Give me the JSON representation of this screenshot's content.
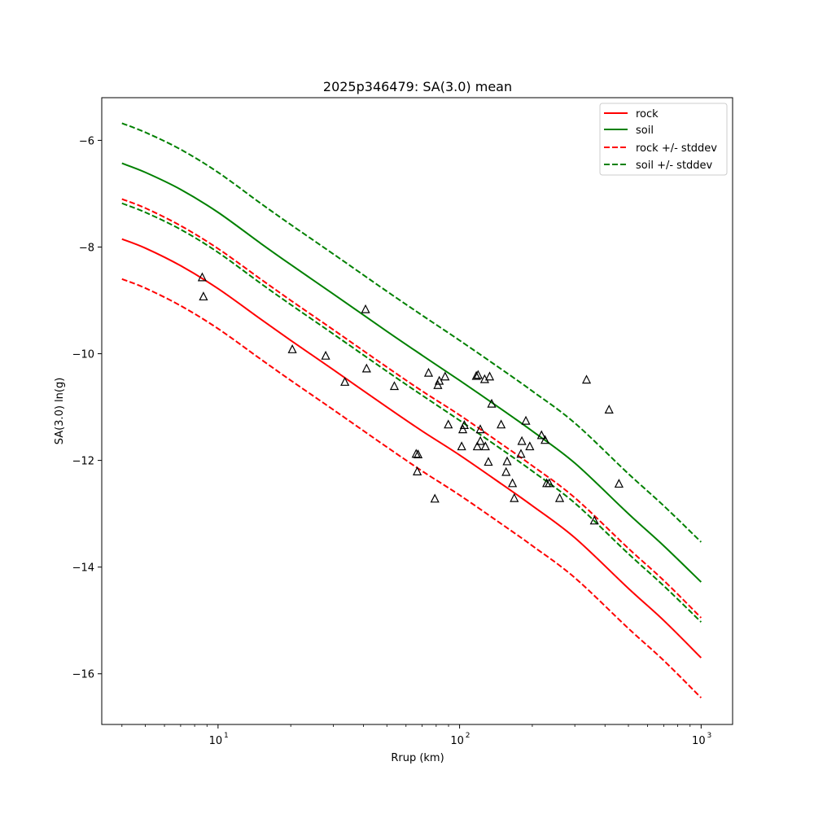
{
  "chart_data": {
    "type": "line",
    "title": "2025p346479: SA(3.0) mean",
    "xlabel": "Rrup (km)",
    "ylabel": "SA(3.0) ln(g)",
    "xscale": "log",
    "xlim": [
      3.3,
      1350
    ],
    "ylim": [
      -16.95,
      -5.2
    ],
    "x_ticks": [
      10,
      100,
      1000
    ],
    "x_tick_labels": [
      "10",
      "10",
      "10"
    ],
    "x_tick_exponents": [
      "1",
      "2",
      "3"
    ],
    "y_ticks": [
      -16,
      -14,
      -12,
      -10,
      -8,
      -6
    ],
    "y_tick_labels": [
      "−16",
      "−14",
      "−12",
      "−10",
      "−8",
      "−6"
    ],
    "grid": false,
    "legend_placement": "top-right",
    "colors": {
      "rock": "#ff0000",
      "soil": "#008000",
      "observed": "#000000"
    },
    "series": [
      {
        "name": "rock",
        "color": "#ff0000",
        "dash": "solid",
        "x": [
          4,
          5,
          7,
          10,
          15,
          20,
          30,
          50,
          70,
          100,
          150,
          200,
          300,
          500,
          700,
          1000
        ],
        "y": [
          -7.85,
          -8.02,
          -8.35,
          -8.78,
          -9.35,
          -9.75,
          -10.3,
          -11.0,
          -11.45,
          -11.9,
          -12.45,
          -12.85,
          -13.45,
          -14.4,
          -15.0,
          -15.7
        ]
      },
      {
        "name": "soil",
        "color": "#008000",
        "dash": "solid",
        "x": [
          4,
          5,
          7,
          10,
          15,
          20,
          30,
          50,
          70,
          100,
          150,
          200,
          300,
          500,
          700,
          1000
        ],
        "y": [
          -6.43,
          -6.6,
          -6.92,
          -7.35,
          -7.93,
          -8.33,
          -8.88,
          -9.58,
          -10.03,
          -10.5,
          -11.05,
          -11.45,
          -12.05,
          -13.0,
          -13.6,
          -14.28
        ]
      },
      {
        "name": "rock +/- stddev",
        "color": "#ff0000",
        "dash": "dashed",
        "x": [
          4,
          5,
          7,
          10,
          15,
          20,
          30,
          50,
          70,
          100,
          150,
          200,
          300,
          500,
          700,
          1000
        ],
        "y": [
          -7.1,
          -7.27,
          -7.6,
          -8.03,
          -8.6,
          -9.0,
          -9.55,
          -10.25,
          -10.7,
          -11.15,
          -11.7,
          -12.1,
          -12.7,
          -13.65,
          -14.25,
          -14.95
        ]
      },
      {
        "name": "",
        "color": "#ff0000",
        "dash": "dashed",
        "x": [
          4,
          5,
          7,
          10,
          15,
          20,
          30,
          50,
          70,
          100,
          150,
          200,
          300,
          500,
          700,
          1000
        ],
        "y": [
          -8.6,
          -8.77,
          -9.1,
          -9.53,
          -10.1,
          -10.5,
          -11.05,
          -11.75,
          -12.2,
          -12.65,
          -13.2,
          -13.6,
          -14.2,
          -15.15,
          -15.75,
          -16.45
        ]
      },
      {
        "name": "soil +/- stddev",
        "color": "#008000",
        "dash": "dashed",
        "x": [
          4,
          5,
          7,
          10,
          15,
          20,
          30,
          50,
          70,
          100,
          150,
          200,
          300,
          500,
          700,
          1000
        ],
        "y": [
          -5.68,
          -5.85,
          -6.17,
          -6.6,
          -7.18,
          -7.58,
          -8.13,
          -8.83,
          -9.28,
          -9.75,
          -10.3,
          -10.7,
          -11.3,
          -12.25,
          -12.85,
          -13.53
        ]
      },
      {
        "name": "",
        "color": "#008000",
        "dash": "dashed",
        "x": [
          4,
          5,
          7,
          10,
          15,
          20,
          30,
          50,
          70,
          100,
          150,
          200,
          300,
          500,
          700,
          1000
        ],
        "y": [
          -7.18,
          -7.35,
          -7.67,
          -8.1,
          -8.68,
          -9.08,
          -9.63,
          -10.33,
          -10.78,
          -11.25,
          -11.8,
          -12.2,
          -12.8,
          -13.75,
          -14.35,
          -15.03
        ]
      }
    ],
    "observations": {
      "marker": "triangle",
      "x": [
        8.6,
        8.7,
        20.3,
        27.9,
        33.5,
        40.8,
        41.2,
        53.7,
        66.1,
        66.8,
        67.3,
        74.4,
        79.0,
        81.3,
        82.4,
        87.1,
        89.8,
        102.0,
        103.1,
        104.6,
        117.3,
        118.4,
        119.3,
        121.8,
        121.9,
        127.0,
        127.9,
        131.6,
        133.2,
        135.8,
        148.6,
        155.8,
        157.3,
        165.6,
        168.4,
        179.5,
        181.1,
        188.1,
        195.3,
        218.4,
        225.9,
        229.5,
        235.0,
        259.6,
        335.4,
        361.5,
        415.8,
        456.9
      ],
      "y": [
        -8.57,
        -8.93,
        -9.92,
        -10.04,
        -10.53,
        -9.17,
        -10.28,
        -10.61,
        -11.88,
        -12.21,
        -11.89,
        -10.36,
        -12.72,
        -10.59,
        -10.51,
        -10.43,
        -11.33,
        -11.74,
        -11.42,
        -11.34,
        -10.42,
        -11.74,
        -10.4,
        -11.42,
        -11.64,
        -10.48,
        -11.74,
        -12.03,
        -10.43,
        -10.94,
        -11.33,
        -12.22,
        -12.02,
        -12.43,
        -12.71,
        -11.88,
        -11.64,
        -11.26,
        -11.74,
        -11.53,
        -11.62,
        -12.43,
        -12.43,
        -12.71,
        -10.49,
        -13.13,
        -11.05,
        -12.44
      ]
    }
  }
}
